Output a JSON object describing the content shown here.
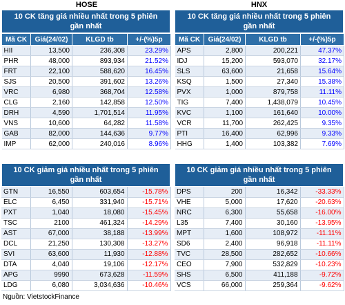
{
  "hose_title": "HOSE",
  "hnx_title": "HNX",
  "headers": [
    "Mã CK",
    "Giá(24/02)",
    "KLGD tb",
    "+/-(%)5p"
  ],
  "top_gainers_title_line1": "10 CK tăng giá nhiều nhất trong 5 phiên",
  "top_gainers_title_line2": "gần nhất",
  "top_losers_title_line1": "10 CK giảm giá nhiều nhất trong 5 phiên",
  "top_losers_title_line2": "gần nhất",
  "hose_gainers": [
    [
      "HII",
      "13,500",
      "236,308",
      "23.29%"
    ],
    [
      "PHR",
      "48,000",
      "893,934",
      "21.52%"
    ],
    [
      "FRT",
      "22,100",
      "588,620",
      "16.45%"
    ],
    [
      "SJS",
      "20,500",
      "391,602",
      "13.26%"
    ],
    [
      "VRC",
      "6,980",
      "368,704",
      "12.58%"
    ],
    [
      "CLG",
      "2,160",
      "142,858",
      "12.50%"
    ],
    [
      "DRH",
      "4,590",
      "1,701,514",
      "11.95%"
    ],
    [
      "VNS",
      "10,600",
      "64,282",
      "11.58%"
    ],
    [
      "GAB",
      "82,000",
      "144,636",
      "9.77%"
    ],
    [
      "IMP",
      "62,000",
      "240,016",
      "8.96%"
    ]
  ],
  "hnx_gainers": [
    [
      "APS",
      "2,800",
      "200,221",
      "47.37%"
    ],
    [
      "IDJ",
      "15,200",
      "593,070",
      "32.17%"
    ],
    [
      "SLS",
      "63,600",
      "21,658",
      "15.64%"
    ],
    [
      "KSQ",
      "1,500",
      "27,340",
      "15.38%"
    ],
    [
      "PVX",
      "1,000",
      "879,758",
      "11.11%"
    ],
    [
      "TIG",
      "7,400",
      "1,438,079",
      "10.45%"
    ],
    [
      "KVC",
      "1,100",
      "161,640",
      "10.00%"
    ],
    [
      "VCR",
      "11,700",
      "262,425",
      "9.35%"
    ],
    [
      "PTI",
      "16,400",
      "62,996",
      "9.33%"
    ],
    [
      "HHG",
      "1,400",
      "103,382",
      "7.69%"
    ]
  ],
  "hose_losers": [
    [
      "GTN",
      "16,550",
      "603,654",
      "-15.78%"
    ],
    [
      "ELC",
      "6,450",
      "331,940",
      "-15.71%"
    ],
    [
      "PXT",
      "1,040",
      "18,080",
      "-15.45%"
    ],
    [
      "TSC",
      "2100",
      "461,324",
      "-14.29%"
    ],
    [
      "AST",
      "67,000",
      "38,188",
      "-13.99%"
    ],
    [
      "DCL",
      "21,250",
      "130,308",
      "-13.27%"
    ],
    [
      "SVI",
      "63,600",
      "11,930",
      "-12.88%"
    ],
    [
      "DTA",
      "4,040",
      "19,106",
      "-12.17%"
    ],
    [
      "APG",
      "9990",
      "673,628",
      "-11.59%"
    ],
    [
      "LDG",
      "6,080",
      "3,034,636",
      "-10.46%"
    ]
  ],
  "hnx_losers": [
    [
      "DPS",
      "200",
      "16,342",
      "-33.33%"
    ],
    [
      "VHE",
      "5,000",
      "17,620",
      "-20.63%"
    ],
    [
      "NRC",
      "6,300",
      "55,658",
      "-16.00%"
    ],
    [
      "L35",
      "7,400",
      "30,160",
      "-13.95%"
    ],
    [
      "MPT",
      "1,600",
      "108,972",
      "-11.11%"
    ],
    [
      "SD6",
      "2,400",
      "96,918",
      "-11.11%"
    ],
    [
      "TVC",
      "28,500",
      "282,652",
      "-10.66%"
    ],
    [
      "CEO",
      "7,900",
      "532,829",
      "-10.23%"
    ],
    [
      "SHS",
      "6,500",
      "411,188",
      "-9.72%"
    ],
    [
      "VCS",
      "66,000",
      "259,364",
      "-9.62%"
    ]
  ],
  "source": "Nguồn: VietstockFinance"
}
